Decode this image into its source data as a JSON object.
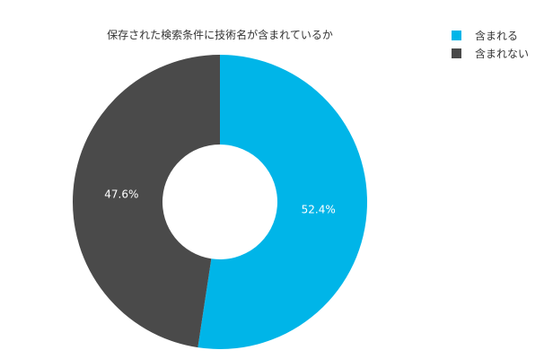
{
  "chart_data": {
    "type": "pie",
    "title": "保存された検索条件に技術名が含まれているか",
    "categories": [
      "含まれる",
      "含まれない"
    ],
    "values": [
      52.4,
      47.6
    ],
    "value_labels": [
      "52.4%",
      "47.6%"
    ],
    "colors": [
      "#00b5e8",
      "#4a4a4a"
    ],
    "legend_placement": "top-right",
    "donut": true
  }
}
